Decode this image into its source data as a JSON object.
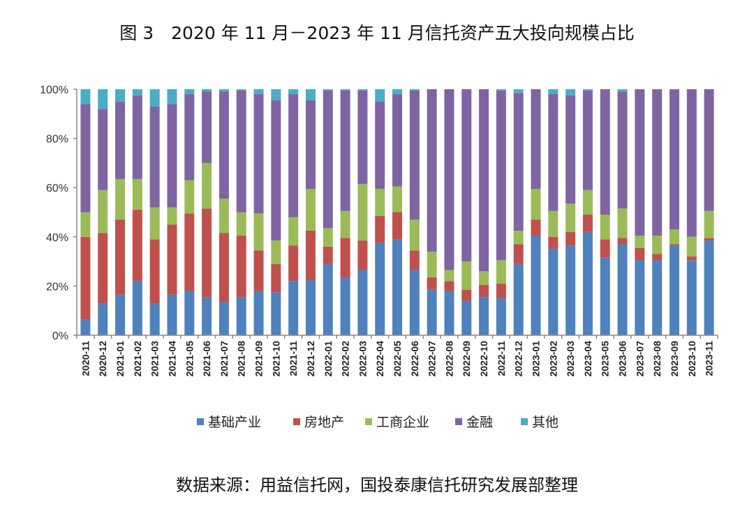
{
  "chart_data": {
    "type": "bar",
    "stacked": true,
    "title": "图 3　2020 年 11 月－2023 年 11 月信托资产五大投向规模占比",
    "source": "数据来源：用益信托网，国投泰康信托研究发展部整理",
    "xlabel": "",
    "ylabel": "",
    "ylim": [
      0,
      100
    ],
    "yticks": [
      "0%",
      "20%",
      "40%",
      "60%",
      "80%",
      "100%"
    ],
    "legend_position": "bottom",
    "categories": [
      "2020-11",
      "2020-12",
      "2021-01",
      "2021-02",
      "2021-03",
      "2021-04",
      "2021-05",
      "2021-06",
      "2021-07",
      "2021-08",
      "2021-09",
      "2021-10",
      "2021-11",
      "2021-12",
      "2022-01",
      "2022-02",
      "2022-03",
      "2022-04",
      "2022-05",
      "2022-06",
      "2022-07",
      "2022-08",
      "2022-09",
      "2022-10",
      "2022-11",
      "2022-12",
      "2023-01",
      "2023-02",
      "2023-03",
      "2023-04",
      "2023-05",
      "2023-06",
      "2023-07",
      "2023-08",
      "2023-09",
      "2023-10",
      "2023-11"
    ],
    "series": [
      {
        "name": "基础产业",
        "color": "#4f81bd",
        "values": [
          6.5,
          13,
          16.5,
          22,
          13,
          16.5,
          18,
          15.5,
          13.5,
          15.5,
          18,
          17.5,
          22,
          22.5,
          29,
          23.5,
          26.5,
          37.5,
          39,
          26.5,
          18.5,
          18,
          14,
          15.5,
          15,
          29,
          40.5,
          35,
          36.5,
          42,
          31.5,
          37,
          30.5,
          30.5,
          36.5,
          30.5,
          38.5
        ]
      },
      {
        "name": "房地产",
        "color": "#c0504d",
        "values": [
          33.5,
          28.5,
          30.5,
          29,
          26,
          28.5,
          31.5,
          36,
          28,
          25,
          16.5,
          11.5,
          14.5,
          20,
          7,
          16,
          12,
          11,
          11,
          8,
          5,
          4,
          4.5,
          5,
          6,
          8,
          6.5,
          5,
          5.5,
          7,
          7.5,
          2.5,
          5,
          2.5,
          0.5,
          1.5,
          1
        ]
      },
      {
        "name": "工商企业",
        "color": "#9bbb59",
        "values": [
          10,
          17.5,
          16.5,
          12.5,
          13,
          7,
          13.5,
          18.5,
          14,
          9.5,
          15,
          9.5,
          11.5,
          17,
          7.5,
          11,
          23,
          11,
          10.5,
          12.5,
          10.5,
          4.5,
          11.5,
          5.5,
          9.5,
          5.5,
          12.5,
          10.5,
          11.5,
          10,
          10,
          12,
          5,
          7.5,
          6,
          8,
          11
        ]
      },
      {
        "name": "金融",
        "color": "#8064a2",
        "values": [
          44,
          33,
          31.5,
          34,
          41,
          42,
          35,
          29,
          43.5,
          49.5,
          48.5,
          57,
          50,
          36,
          56,
          49,
          38,
          35.5,
          37.5,
          52.5,
          66,
          73.5,
          70,
          74,
          69,
          56,
          40.5,
          47.5,
          44,
          40.5,
          51,
          47.5,
          59.5,
          59.5,
          57,
          60,
          49.5
        ]
      },
      {
        "name": "其他",
        "color": "#4bacc6",
        "values": [
          6,
          8,
          5,
          2.5,
          7,
          6,
          2,
          1,
          1,
          0.5,
          2,
          4.5,
          2,
          4.5,
          0.5,
          0.5,
          0.5,
          5,
          2,
          0.5,
          0,
          0,
          0,
          0,
          0.5,
          1.5,
          0,
          2,
          2.5,
          0.5,
          0,
          1,
          0,
          0,
          0,
          0,
          0
        ]
      }
    ]
  }
}
